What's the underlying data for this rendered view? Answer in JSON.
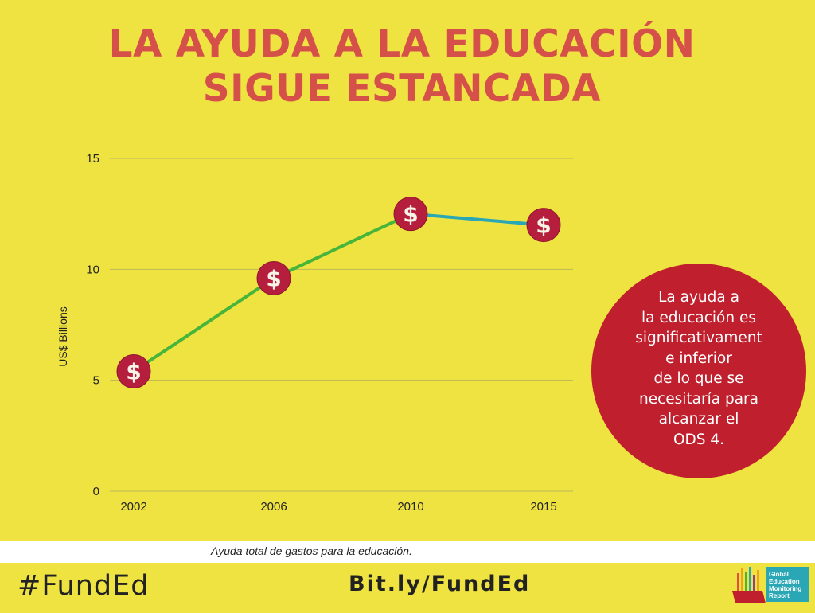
{
  "title": {
    "line1": "LA AYUDA A LA EDUCACIÓN",
    "line2": "SIGUE ESTANCADA"
  },
  "chart_data": {
    "type": "line",
    "categories": [
      "2002",
      "2006",
      "2010",
      "2015"
    ],
    "values": [
      5.4,
      9.6,
      12.5,
      12.0
    ],
    "ylabel": "US$ Billions",
    "xlabel": "",
    "ylim": [
      0,
      15
    ],
    "yticks": [
      0,
      5,
      10,
      15
    ],
    "grid": true,
    "marker": "dollar-icon",
    "colors": {
      "segment_rising": "#47b43a",
      "segment_flat": "#2aa7b5",
      "marker_fill": "#b51e3c",
      "gridline": "#bdb65a",
      "axis_text": "#222222"
    }
  },
  "callout": {
    "lines": [
      "La ayuda a",
      "la educación es",
      "significativament",
      "e inferior",
      "de lo que se",
      "necesitaría para",
      "alcanzar el",
      "ODS 4."
    ]
  },
  "caption": "Ayuda total de gastos para la educación.",
  "footer": {
    "hashtag": "#FundEd",
    "link": "Bit.ly/FundEd",
    "logo_lines": [
      "Global",
      "Education",
      "Monitoring",
      "Report"
    ]
  },
  "colors": {
    "background": "#efe342",
    "title": "#d6504a",
    "callout": "#c0202e"
  }
}
